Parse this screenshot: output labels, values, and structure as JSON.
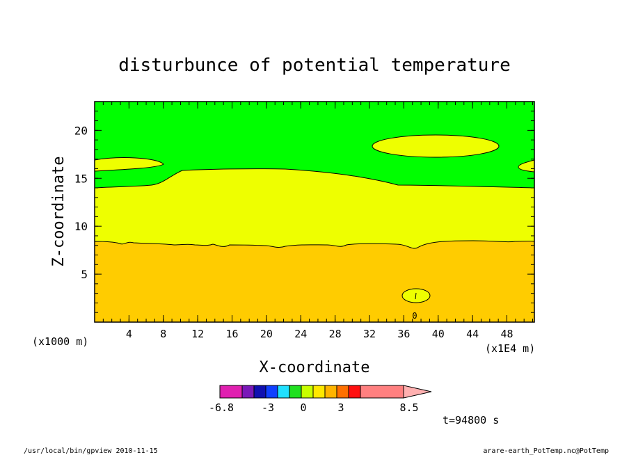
{
  "chart_data": {
    "type": "heatmap",
    "title": "disturbunce of potential temperature",
    "xlabel": "X-coordinate",
    "ylabel": "Z-coordinate",
    "x_unit_left": "(x1000 m)",
    "x_unit_right": "(x1E4 m)",
    "xlim": [
      0,
      51.2
    ],
    "ylim": [
      0,
      23
    ],
    "x_ticks": [
      4,
      8,
      12,
      16,
      20,
      24,
      28,
      32,
      36,
      40,
      44,
      48
    ],
    "y_ticks": [
      5,
      10,
      15,
      20
    ],
    "zero_label": "0",
    "colorbar": {
      "tick_labels": [
        "-6.8",
        "-3",
        "0",
        "3",
        "8.5"
      ],
      "colors": [
        "#e020b0",
        "#7a18b8",
        "#1010b0",
        "#1040ff",
        "#20e0ff",
        "#20e020",
        "#c8ff00",
        "#ffe800",
        "#ffb400",
        "#ff7000",
        "#ff1010",
        "#ff8080",
        "#ffb0b0"
      ]
    },
    "regions": [
      {
        "name": "upper",
        "color": "#00ff00"
      },
      {
        "name": "middle",
        "color": "#eeff00"
      },
      {
        "name": "lower",
        "color": "#ffcc00"
      }
    ],
    "time_label": "t=94800 s"
  },
  "footer": {
    "left": "/usr/local/bin/gpview  2010-11-15",
    "right": "arare-earth_PotTemp.nc@PotTemp"
  }
}
